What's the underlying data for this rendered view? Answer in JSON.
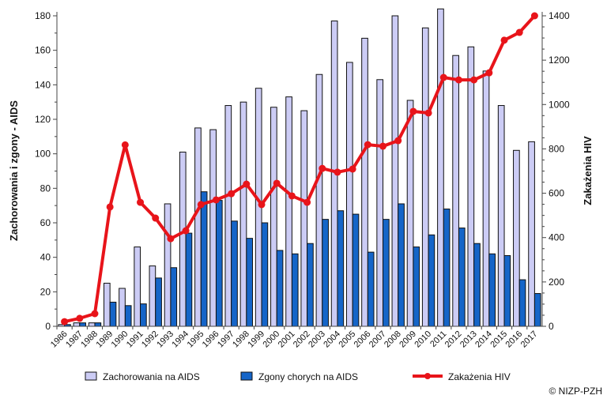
{
  "chart_data": {
    "type": "bar",
    "categories": [
      "1986",
      "1987",
      "1988",
      "1989",
      "1990",
      "1991",
      "1992",
      "1993",
      "1994",
      "1995",
      "1996",
      "1997",
      "1998",
      "1999",
      "2000",
      "2001",
      "2002",
      "2003",
      "2004",
      "2005",
      "2006",
      "2007",
      "2008",
      "2009",
      "2010",
      "2011",
      "2012",
      "2013",
      "2014",
      "2015",
      "2016",
      "2017"
    ],
    "series": [
      {
        "name": "Zachorowania na AIDS",
        "kind": "bar",
        "axis": "left",
        "color": "#ccccf5",
        "values": [
          1,
          2,
          2,
          25,
          22,
          46,
          35,
          71,
          101,
          115,
          114,
          128,
          130,
          138,
          127,
          133,
          125,
          146,
          177,
          153,
          167,
          143,
          180,
          131,
          173,
          184,
          157,
          162,
          148,
          128,
          102,
          107
        ]
      },
      {
        "name": "Zgony chorych na AIDS",
        "kind": "bar",
        "axis": "left",
        "color": "#1565c8",
        "values": [
          1,
          2,
          2,
          14,
          12,
          13,
          28,
          34,
          54,
          78,
          73,
          61,
          51,
          60,
          44,
          42,
          48,
          62,
          67,
          65,
          43,
          62,
          71,
          46,
          53,
          68,
          57,
          48,
          42,
          41,
          27,
          19
        ]
      },
      {
        "name": "Zakażenia HIV",
        "kind": "line",
        "axis": "right",
        "color": "#e8141a",
        "values": [
          21,
          36,
          57,
          538,
          818,
          559,
          488,
          395,
          431,
          549,
          570,
          598,
          641,
          549,
          645,
          588,
          559,
          712,
          695,
          709,
          819,
          812,
          837,
          969,
          962,
          1122,
          1111,
          1111,
          1143,
          1290,
          1325,
          1400
        ]
      }
    ],
    "ylabel": "Zachorowania i zgony - AIDS",
    "y2label": "Zakażenia HIV",
    "ylim": [
      0,
      180
    ],
    "y2lim": [
      0,
      1400
    ],
    "yticks": [
      "0",
      "20",
      "40",
      "60",
      "80",
      "100",
      "120",
      "140",
      "160",
      "180"
    ],
    "y2ticks": [
      "0",
      "200",
      "400",
      "600",
      "800",
      "1000",
      "1200",
      "1400"
    ],
    "grid": false,
    "legend": "bottom"
  },
  "copyright": "© NIZP-PZH"
}
